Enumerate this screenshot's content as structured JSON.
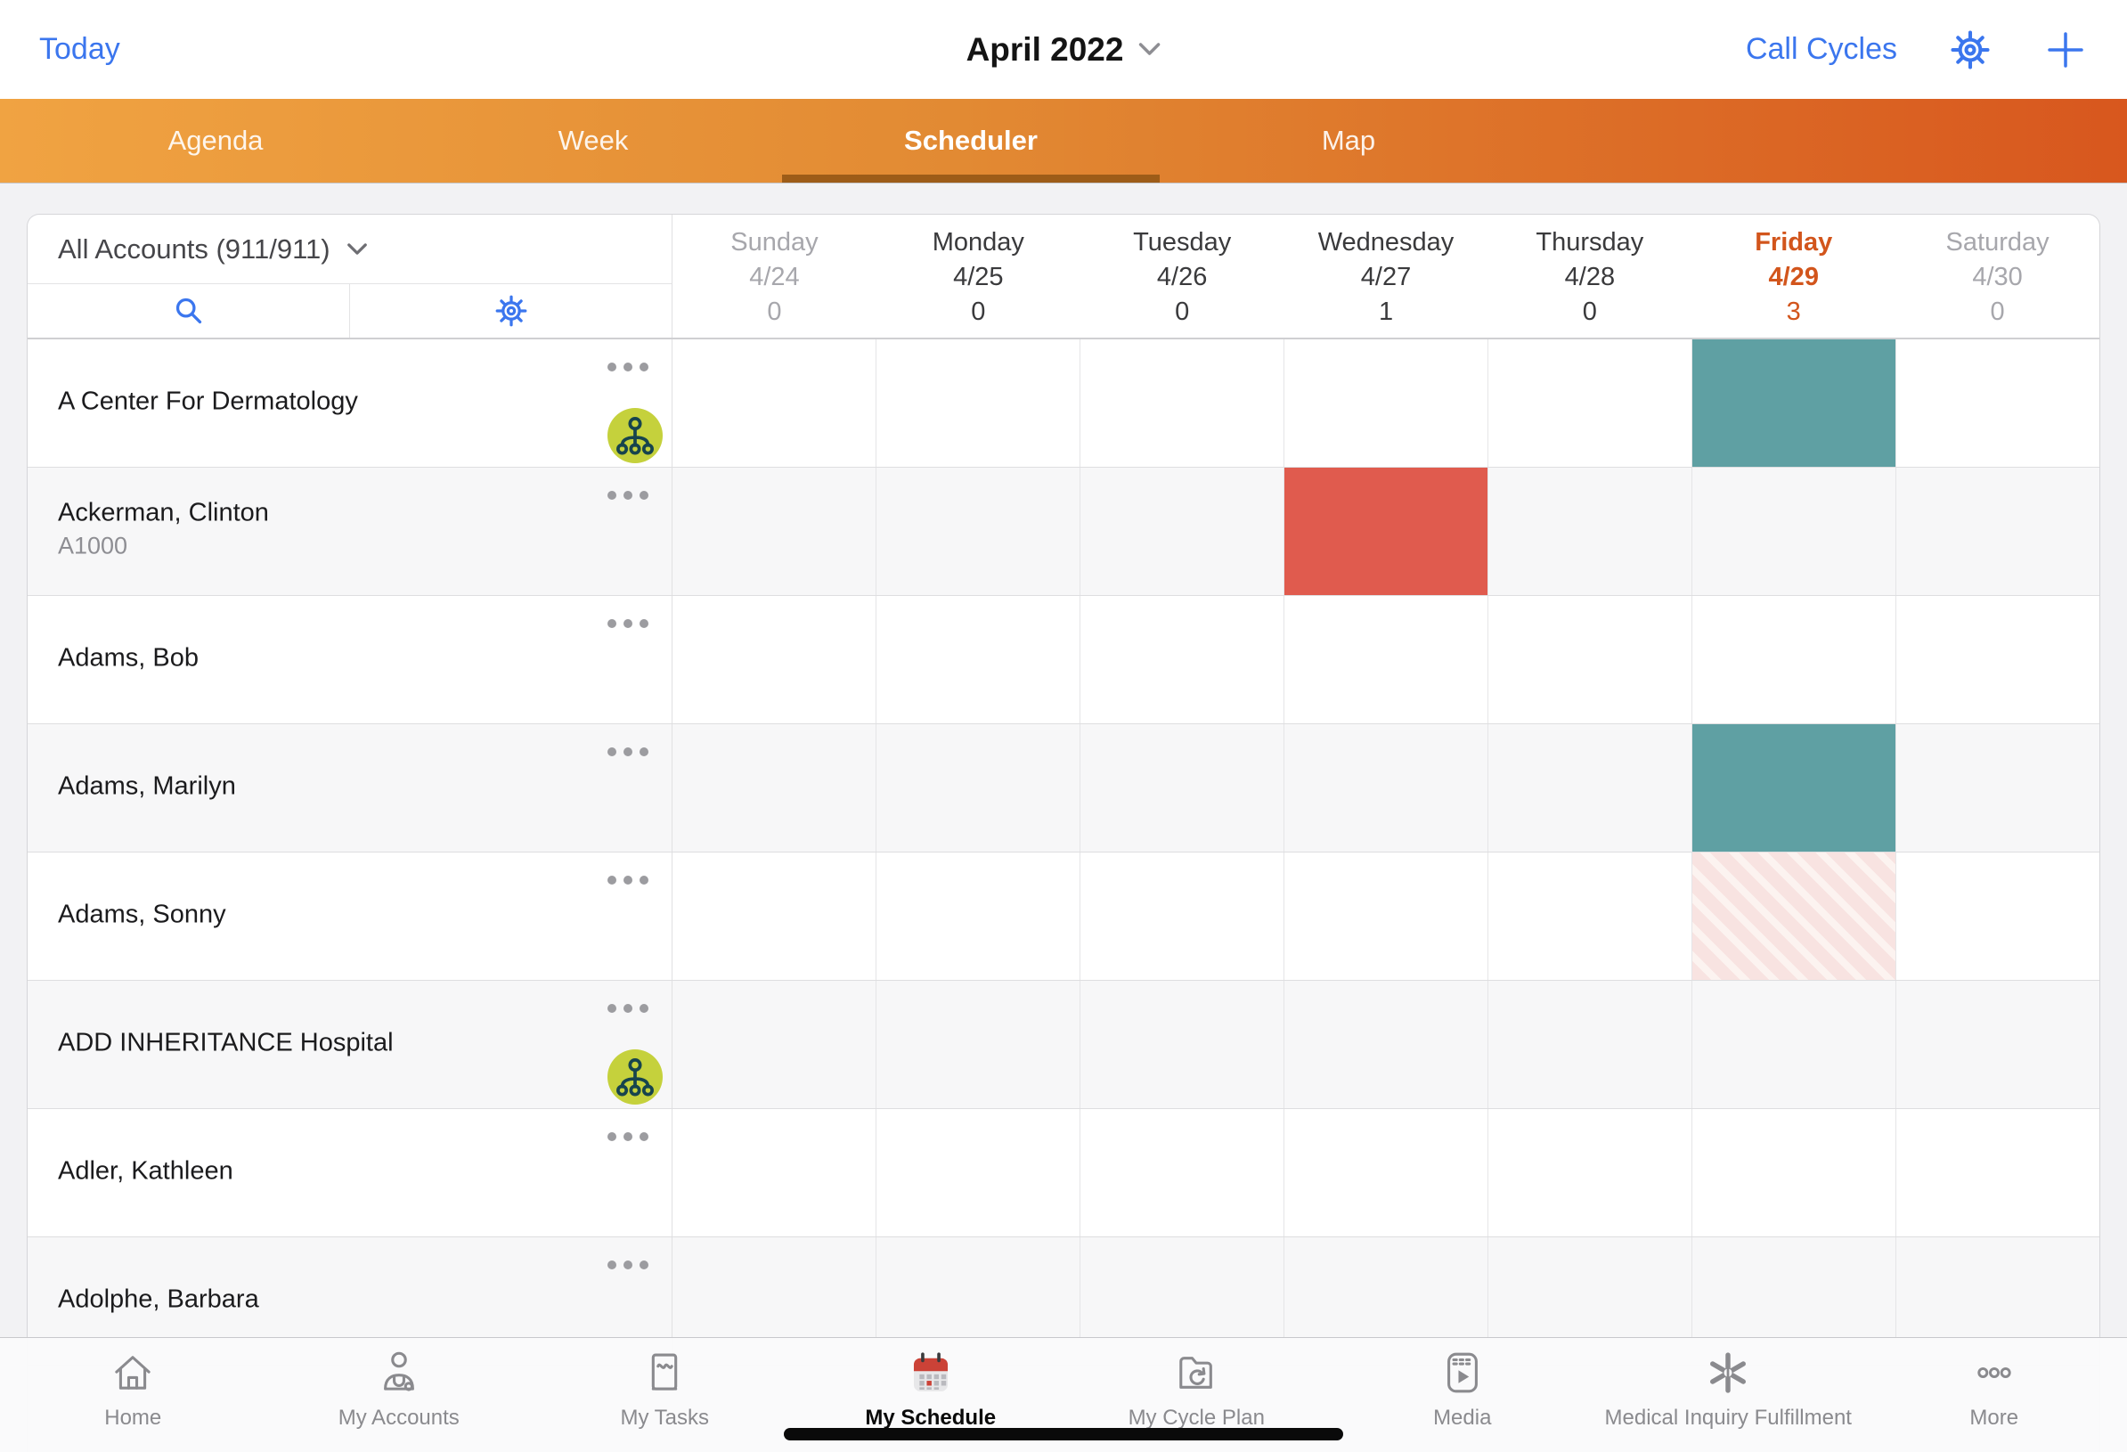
{
  "top_bar": {
    "today_label": "Today",
    "title": "April 2022",
    "call_cycles_label": "Call Cycles"
  },
  "tab_bar": {
    "selected_index": 2,
    "tabs": [
      {
        "label": "Agenda"
      },
      {
        "label": "Week"
      },
      {
        "label": "Scheduler"
      },
      {
        "label": "Map"
      }
    ]
  },
  "accounts_panel": {
    "filter_label": "All Accounts (911/911)"
  },
  "week": {
    "days": [
      {
        "name": "Sunday",
        "date": "4/24",
        "count": "0",
        "muted": true
      },
      {
        "name": "Monday",
        "date": "4/25",
        "count": "0"
      },
      {
        "name": "Tuesday",
        "date": "4/26",
        "count": "0"
      },
      {
        "name": "Wednesday",
        "date": "4/27",
        "count": "1"
      },
      {
        "name": "Thursday",
        "date": "4/28",
        "count": "0"
      },
      {
        "name": "Friday",
        "date": "4/29",
        "count": "3",
        "today": true
      },
      {
        "name": "Saturday",
        "date": "4/30",
        "count": "0",
        "muted": true
      }
    ]
  },
  "accounts": [
    {
      "name": "A Center For Dermatology",
      "org_icon": true
    },
    {
      "name": "Ackerman, Clinton",
      "code": "A1000"
    },
    {
      "name": "Adams, Bob"
    },
    {
      "name": "Adams, Marilyn"
    },
    {
      "name": "Adams, Sonny"
    },
    {
      "name": "ADD INHERITANCE Hospital",
      "org_icon": true
    },
    {
      "name": "Adler, Kathleen"
    },
    {
      "name": "Adolphe, Barbara"
    }
  ],
  "events": [
    {
      "account_index": 0,
      "day_index": 5,
      "type": "call-scheduled"
    },
    {
      "account_index": 1,
      "day_index": 3,
      "type": "call-missed"
    },
    {
      "account_index": 3,
      "day_index": 5,
      "type": "call-scheduled"
    },
    {
      "account_index": 4,
      "day_index": 5,
      "type": "call-suggested"
    }
  ],
  "event_styles": {
    "call-scheduled": {
      "fill": "#5FA0A3"
    },
    "call-missed": {
      "fill": "#E05B4E"
    },
    "call-suggested": {
      "stripe_base": "#F8E3E1",
      "stripe_light": "#FCF3F0"
    }
  },
  "colors": {
    "accent_blue": "#3B76EE",
    "tab_gradient_left": "#F0A342",
    "tab_gradient_right": "#D8571E",
    "tab_underline": "#9D5C18",
    "today_orange": "#D2551C",
    "org_icon_bg": "#C5D13C",
    "org_icon_glyph": "#17444D"
  },
  "bottom_nav": {
    "selected_index": 3,
    "items": [
      {
        "label": "Home"
      },
      {
        "label": "My Accounts"
      },
      {
        "label": "My Tasks"
      },
      {
        "label": "My Schedule"
      },
      {
        "label": "My Cycle Plan"
      },
      {
        "label": "Media"
      },
      {
        "label": "Medical Inquiry Fulfillment"
      },
      {
        "label": "More"
      }
    ]
  }
}
